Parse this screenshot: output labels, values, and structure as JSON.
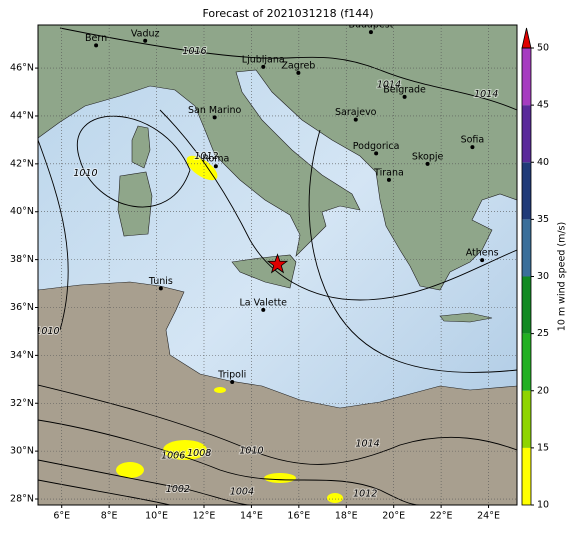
{
  "chart_data": {
    "type": "map",
    "title": "Forecast of 2021031218 (f144)",
    "lonlim": [
      5,
      25.2
    ],
    "latlim": [
      27.75,
      47.8
    ],
    "xticks": [
      {
        "value": 6,
        "label": "6°E"
      },
      {
        "value": 8,
        "label": "8°E"
      },
      {
        "value": 10,
        "label": "10°E"
      },
      {
        "value": 12,
        "label": "12°E"
      },
      {
        "value": 14,
        "label": "14°E"
      },
      {
        "value": 16,
        "label": "16°E"
      },
      {
        "value": 18,
        "label": "18°E"
      },
      {
        "value": 20,
        "label": "20°E"
      },
      {
        "value": 22,
        "label": "22°E"
      },
      {
        "value": 24,
        "label": "24°E"
      }
    ],
    "yticks": [
      {
        "value": 28,
        "label": "28°N"
      },
      {
        "value": 30,
        "label": "30°N"
      },
      {
        "value": 32,
        "label": "32°N"
      },
      {
        "value": 34,
        "label": "34°N"
      },
      {
        "value": 36,
        "label": "36°N"
      },
      {
        "value": 38,
        "label": "38°N"
      },
      {
        "value": 40,
        "label": "40°N"
      },
      {
        "value": 42,
        "label": "42°N"
      },
      {
        "value": 44,
        "label": "44°N"
      },
      {
        "value": 46,
        "label": "46°N"
      }
    ],
    "grid": true,
    "cities": [
      {
        "name": "Bern",
        "lon": 7.45,
        "lat": 46.95
      },
      {
        "name": "Vaduz",
        "lon": 9.52,
        "lat": 47.14
      },
      {
        "name": "Budapest",
        "lon": 19.04,
        "lat": 47.5
      },
      {
        "name": "Ljubljana",
        "lon": 14.5,
        "lat": 46.05
      },
      {
        "name": "Zagreb",
        "lon": 15.98,
        "lat": 45.8
      },
      {
        "name": "San Marino",
        "lon": 12.45,
        "lat": 43.94
      },
      {
        "name": "Belgrade",
        "lon": 20.46,
        "lat": 44.8
      },
      {
        "name": "Sarajevo",
        "lon": 18.4,
        "lat": 43.85
      },
      {
        "name": "Roma",
        "lon": 12.5,
        "lat": 41.9
      },
      {
        "name": "Podgorica",
        "lon": 19.26,
        "lat": 42.44
      },
      {
        "name": "Skopje",
        "lon": 21.43,
        "lat": 42.0
      },
      {
        "name": "Sofia",
        "lon": 23.32,
        "lat": 42.7
      },
      {
        "name": "Tirana",
        "lon": 19.8,
        "lat": 41.33
      },
      {
        "name": "Athens",
        "lon": 23.73,
        "lat": 37.98
      },
      {
        "name": "Tunis",
        "lon": 10.18,
        "lat": 36.8
      },
      {
        "name": "La Valette",
        "lon": 14.5,
        "lat": 35.9
      },
      {
        "name": "Tripoli",
        "lon": 13.19,
        "lat": 32.89
      }
    ],
    "marker": {
      "lon": 15.1,
      "lat": 37.8,
      "color": "#e00000"
    },
    "isobar_labels": [
      {
        "text": "1016",
        "lon": 11.6,
        "lat": 46.7
      },
      {
        "text": "1014",
        "lon": 19.8,
        "lat": 45.3
      },
      {
        "text": "1014",
        "lon": 23.9,
        "lat": 44.9
      },
      {
        "text": "1012",
        "lon": 12.1,
        "lat": 42.3
      },
      {
        "text": "1010",
        "lon": 7.0,
        "lat": 41.6
      },
      {
        "text": "1010",
        "lon": 5.4,
        "lat": 35.0
      },
      {
        "text": "1008",
        "lon": 11.8,
        "lat": 29.9
      },
      {
        "text": "1006",
        "lon": 10.7,
        "lat": 29.8
      },
      {
        "text": "1010",
        "lon": 14.0,
        "lat": 30.0
      },
      {
        "text": "1014",
        "lon": 18.9,
        "lat": 30.3
      },
      {
        "text": "1012",
        "lon": 18.8,
        "lat": 28.2
      },
      {
        "text": "1004",
        "lon": 13.6,
        "lat": 28.3
      },
      {
        "text": "1002",
        "lon": 10.9,
        "lat": 28.4
      }
    ],
    "colorbar": {
      "label": "10 m wind speed (m/s)",
      "lim": [
        10,
        50
      ],
      "ticks": [
        10,
        15,
        20,
        25,
        30,
        35,
        40,
        45,
        50
      ],
      "bounds": [
        10,
        15,
        20,
        25,
        30,
        35,
        40,
        45,
        50
      ],
      "colors": [
        "#ffff00",
        "#8fd400",
        "#22b022",
        "#118a22",
        "#3a6f9a",
        "#1f3a78",
        "#5a2a9a",
        "#a63cc0"
      ],
      "extend_color": "#e00000"
    }
  }
}
